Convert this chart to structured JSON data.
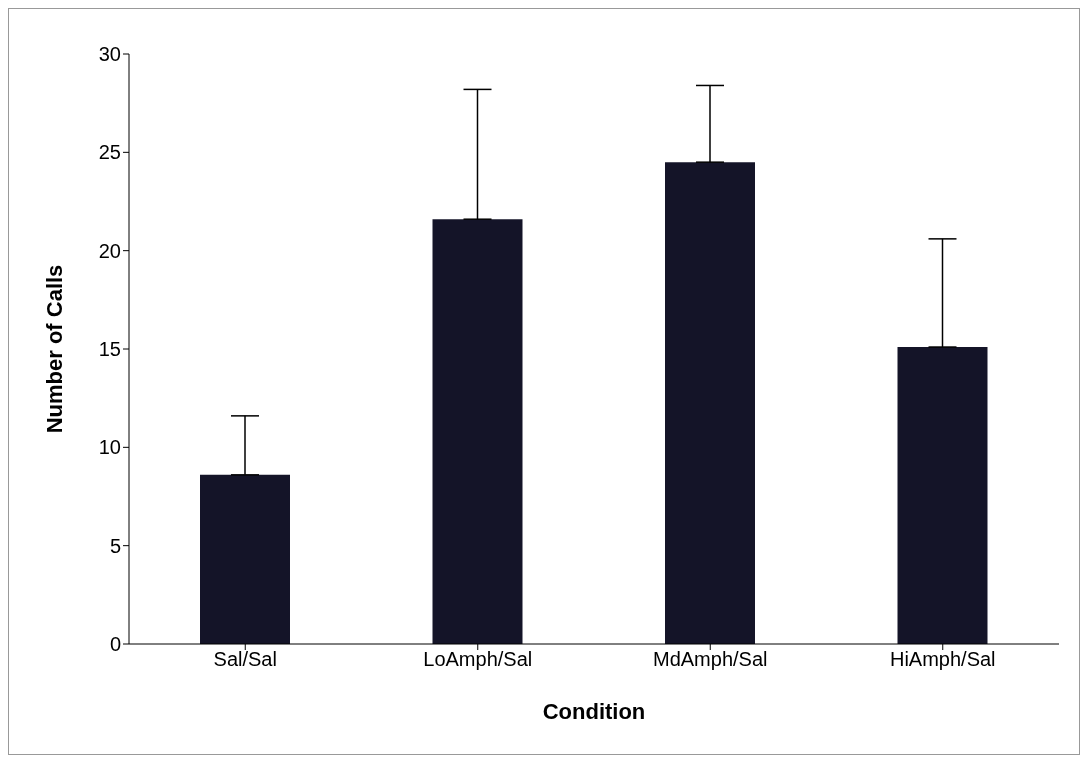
{
  "chart_data": {
    "type": "bar",
    "xlabel": "Condition",
    "ylabel": "Number of Calls",
    "categories": [
      "Sal/Sal",
      "LoAmph/Sal",
      "MdAmph/Sal",
      "HiAmph/Sal"
    ],
    "values": [
      8.6,
      21.6,
      24.5,
      15.1
    ],
    "errors": [
      [
        8.6,
        11.6
      ],
      [
        21.6,
        28.2
      ],
      [
        24.5,
        28.4
      ],
      [
        15.1,
        20.6
      ]
    ],
    "color": "#141428",
    "ylim": [
      0,
      30
    ],
    "yticks": [
      0,
      5,
      10,
      15,
      20,
      25,
      30
    ],
    "grid": false,
    "legend": false
  }
}
